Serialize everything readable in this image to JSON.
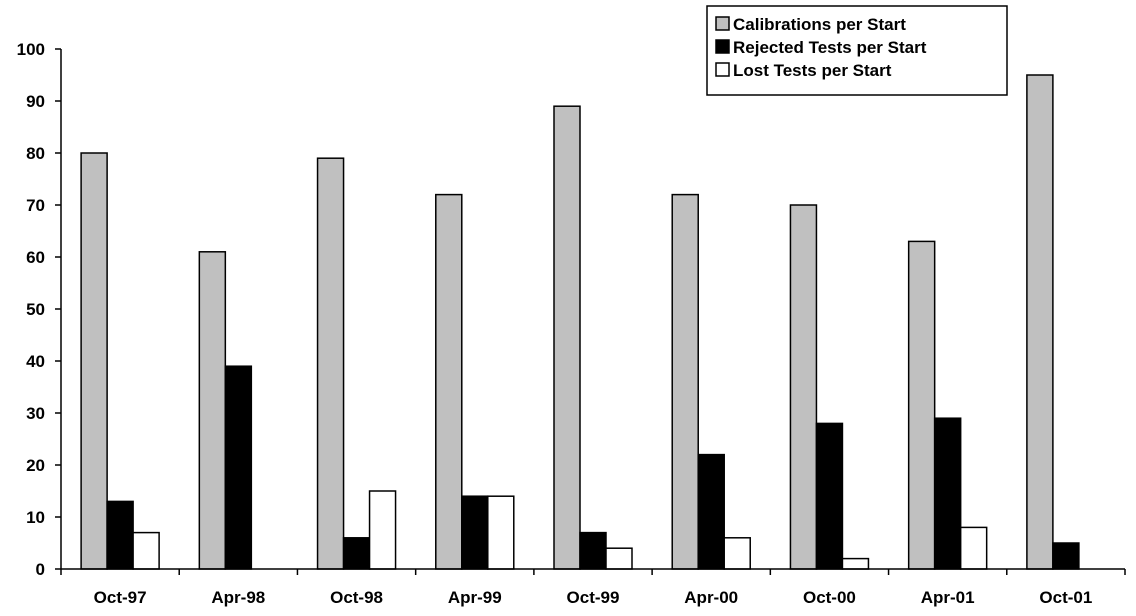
{
  "chart_data": {
    "type": "bar",
    "title": "",
    "xlabel": "",
    "ylabel": "",
    "ylim": [
      0,
      100
    ],
    "yticks": [
      "0",
      "10",
      "20",
      "30",
      "40",
      "50",
      "60",
      "70",
      "80",
      "90",
      "100"
    ],
    "grid": false,
    "legend_position": "top-right",
    "categories": [
      "Oct-97",
      "Apr-98",
      "Oct-98",
      "Apr-99",
      "Oct-99",
      "Apr-00",
      "Oct-00",
      "Apr-01",
      "Oct-01"
    ],
    "series": [
      {
        "name": "Calibrations per Start",
        "color": "#c0c0c0",
        "values": [
          80,
          61,
          79,
          72,
          89,
          72,
          70,
          63,
          95
        ]
      },
      {
        "name": "Rejected Tests per Start",
        "color": "#000000",
        "values": [
          13,
          39,
          6,
          14,
          7,
          22,
          28,
          29,
          5
        ]
      },
      {
        "name": "Lost Tests per Start",
        "color": "#ffffff",
        "values": [
          7,
          0,
          15,
          14,
          4,
          6,
          2,
          8,
          0
        ]
      }
    ]
  }
}
